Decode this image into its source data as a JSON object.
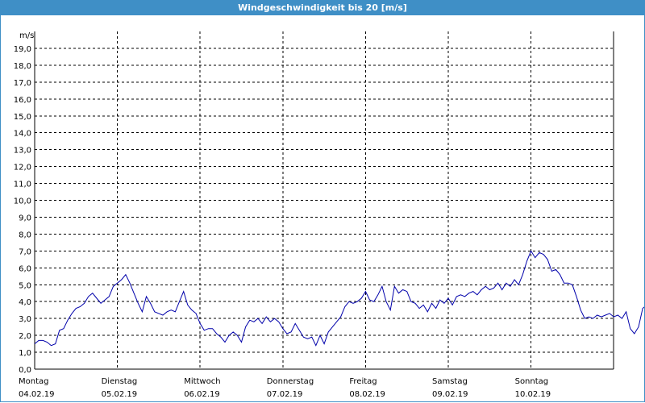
{
  "window": {
    "title": "Windgeschwindigkeit bis 20 [m/s]"
  },
  "colors": {
    "title_bar": "#3f8fc6",
    "series": "#0000aa",
    "grid": "#000000"
  },
  "chart_data": {
    "type": "line",
    "title": "Windgeschwindigkeit bis 20 [m/s]",
    "ylabel": "m/s",
    "ylim": [
      0,
      20
    ],
    "ytick_labels": [
      "0,0",
      "1,0",
      "2,0",
      "3,0",
      "4,0",
      "5,0",
      "6,0",
      "7,0",
      "8,0",
      "9,0",
      "10,0",
      "11,0",
      "12,0",
      "13,0",
      "14,0",
      "15,0",
      "16,0",
      "17,0",
      "18,0",
      "19,0"
    ],
    "xlim_days": [
      0,
      7
    ],
    "x_day_labels": [
      {
        "day": "Montag",
        "date": "04.02.19"
      },
      {
        "day": "Dienstag",
        "date": "05.02.19"
      },
      {
        "day": "Mittwoch",
        "date": "06.02.19"
      },
      {
        "day": "Donnerstag",
        "date": "07.02.19"
      },
      {
        "day": "Freitag",
        "date": "08.02.19"
      },
      {
        "day": "Samstag",
        "date": "09.02.19"
      },
      {
        "day": "Sonntag",
        "date": "10.02.19"
      }
    ],
    "grid": "dashed",
    "series": [
      {
        "values": [
          [
            0.0,
            1.5
          ],
          [
            0.05,
            1.7
          ],
          [
            0.1,
            1.7
          ],
          [
            0.15,
            1.6
          ],
          [
            0.2,
            1.4
          ],
          [
            0.25,
            1.5
          ],
          [
            0.3,
            2.3
          ],
          [
            0.35,
            2.4
          ],
          [
            0.4,
            2.9
          ],
          [
            0.45,
            3.3
          ],
          [
            0.5,
            3.6
          ],
          [
            0.55,
            3.7
          ],
          [
            0.6,
            3.9
          ],
          [
            0.65,
            4.3
          ],
          [
            0.7,
            4.5
          ],
          [
            0.75,
            4.2
          ],
          [
            0.8,
            3.9
          ],
          [
            0.85,
            4.1
          ],
          [
            0.9,
            4.3
          ],
          [
            0.95,
            4.9
          ],
          [
            1.0,
            5.1
          ],
          [
            1.05,
            5.3
          ],
          [
            1.1,
            5.6
          ],
          [
            1.15,
            5.1
          ],
          [
            1.2,
            4.5
          ],
          [
            1.25,
            3.9
          ],
          [
            1.3,
            3.4
          ],
          [
            1.35,
            4.3
          ],
          [
            1.4,
            3.9
          ],
          [
            1.45,
            3.4
          ],
          [
            1.5,
            3.3
          ],
          [
            1.55,
            3.2
          ],
          [
            1.6,
            3.4
          ],
          [
            1.65,
            3.5
          ],
          [
            1.7,
            3.4
          ],
          [
            1.75,
            4.0
          ],
          [
            1.8,
            4.6
          ],
          [
            1.85,
            3.8
          ],
          [
            1.9,
            3.5
          ],
          [
            1.95,
            3.3
          ],
          [
            2.0,
            2.7
          ],
          [
            2.05,
            2.3
          ],
          [
            2.1,
            2.4
          ],
          [
            2.15,
            2.4
          ],
          [
            2.2,
            2.1
          ],
          [
            2.25,
            1.9
          ],
          [
            2.3,
            1.6
          ],
          [
            2.35,
            2.0
          ],
          [
            2.4,
            2.2
          ],
          [
            2.45,
            2.0
          ],
          [
            2.5,
            1.6
          ],
          [
            2.55,
            2.5
          ],
          [
            2.6,
            2.9
          ],
          [
            2.65,
            2.8
          ],
          [
            2.7,
            3.0
          ],
          [
            2.75,
            2.7
          ],
          [
            2.8,
            3.1
          ],
          [
            2.85,
            2.8
          ],
          [
            2.9,
            3.0
          ],
          [
            2.95,
            2.8
          ],
          [
            3.0,
            2.4
          ],
          [
            3.05,
            2.1
          ],
          [
            3.1,
            2.2
          ],
          [
            3.15,
            2.7
          ],
          [
            3.2,
            2.3
          ],
          [
            3.25,
            1.9
          ],
          [
            3.3,
            1.8
          ],
          [
            3.35,
            1.9
          ],
          [
            3.4,
            1.4
          ],
          [
            3.45,
            2.0
          ],
          [
            3.5,
            1.5
          ],
          [
            3.55,
            2.2
          ],
          [
            3.6,
            2.5
          ],
          [
            3.65,
            2.8
          ],
          [
            3.7,
            3.1
          ],
          [
            3.75,
            3.7
          ],
          [
            3.8,
            4.0
          ],
          [
            3.85,
            3.9
          ],
          [
            3.9,
            4.0
          ],
          [
            3.95,
            4.2
          ],
          [
            4.0,
            4.6
          ],
          [
            4.05,
            4.1
          ],
          [
            4.1,
            4.0
          ],
          [
            4.15,
            4.4
          ],
          [
            4.2,
            4.9
          ],
          [
            4.25,
            4.0
          ],
          [
            4.3,
            3.5
          ],
          [
            4.35,
            4.9
          ],
          [
            4.4,
            4.5
          ],
          [
            4.45,
            4.7
          ],
          [
            4.5,
            4.6
          ],
          [
            4.55,
            4.0
          ],
          [
            4.6,
            3.9
          ],
          [
            4.65,
            3.6
          ],
          [
            4.7,
            3.8
          ],
          [
            4.75,
            3.4
          ],
          [
            4.8,
            3.9
          ],
          [
            4.85,
            3.6
          ],
          [
            4.9,
            4.1
          ],
          [
            4.95,
            3.9
          ],
          [
            5.0,
            4.2
          ],
          [
            5.05,
            3.8
          ],
          [
            5.1,
            4.3
          ],
          [
            5.15,
            4.4
          ],
          [
            5.2,
            4.3
          ],
          [
            5.25,
            4.5
          ],
          [
            5.3,
            4.6
          ],
          [
            5.35,
            4.4
          ],
          [
            5.4,
            4.7
          ],
          [
            5.45,
            4.9
          ],
          [
            5.5,
            4.7
          ],
          [
            5.55,
            4.8
          ],
          [
            5.6,
            5.1
          ],
          [
            5.65,
            4.7
          ],
          [
            5.7,
            5.1
          ],
          [
            5.75,
            4.9
          ],
          [
            5.8,
            5.3
          ],
          [
            5.85,
            5.0
          ],
          [
            5.9,
            5.6
          ],
          [
            5.95,
            6.4
          ],
          [
            6.0,
            7.0
          ],
          [
            6.05,
            6.6
          ],
          [
            6.1,
            6.9
          ],
          [
            6.15,
            6.8
          ],
          [
            6.2,
            6.5
          ],
          [
            6.25,
            5.8
          ],
          [
            6.3,
            5.9
          ],
          [
            6.35,
            5.6
          ],
          [
            6.4,
            5.1
          ],
          [
            6.45,
            5.1
          ],
          [
            6.5,
            5.0
          ],
          [
            6.55,
            4.3
          ],
          [
            6.6,
            3.5
          ],
          [
            6.65,
            3.0
          ],
          [
            6.7,
            3.1
          ],
          [
            6.75,
            3.0
          ],
          [
            6.8,
            3.2
          ],
          [
            6.85,
            3.1
          ],
          [
            6.9,
            3.2
          ],
          [
            6.95,
            3.3
          ],
          [
            7.0,
            3.1
          ],
          [
            7.05,
            3.2
          ],
          [
            7.1,
            3.0
          ],
          [
            7.15,
            3.4
          ],
          [
            7.2,
            2.4
          ],
          [
            7.25,
            2.1
          ],
          [
            7.3,
            2.5
          ],
          [
            7.35,
            3.6
          ],
          [
            7.4,
            3.8
          ],
          [
            7.45,
            3.9
          ],
          [
            7.5,
            4.6
          ],
          [
            7.55,
            3.6
          ],
          [
            7.6,
            4.3
          ],
          [
            7.65,
            5.2
          ],
          [
            7.7,
            3.7
          ]
        ]
      }
    ]
  }
}
